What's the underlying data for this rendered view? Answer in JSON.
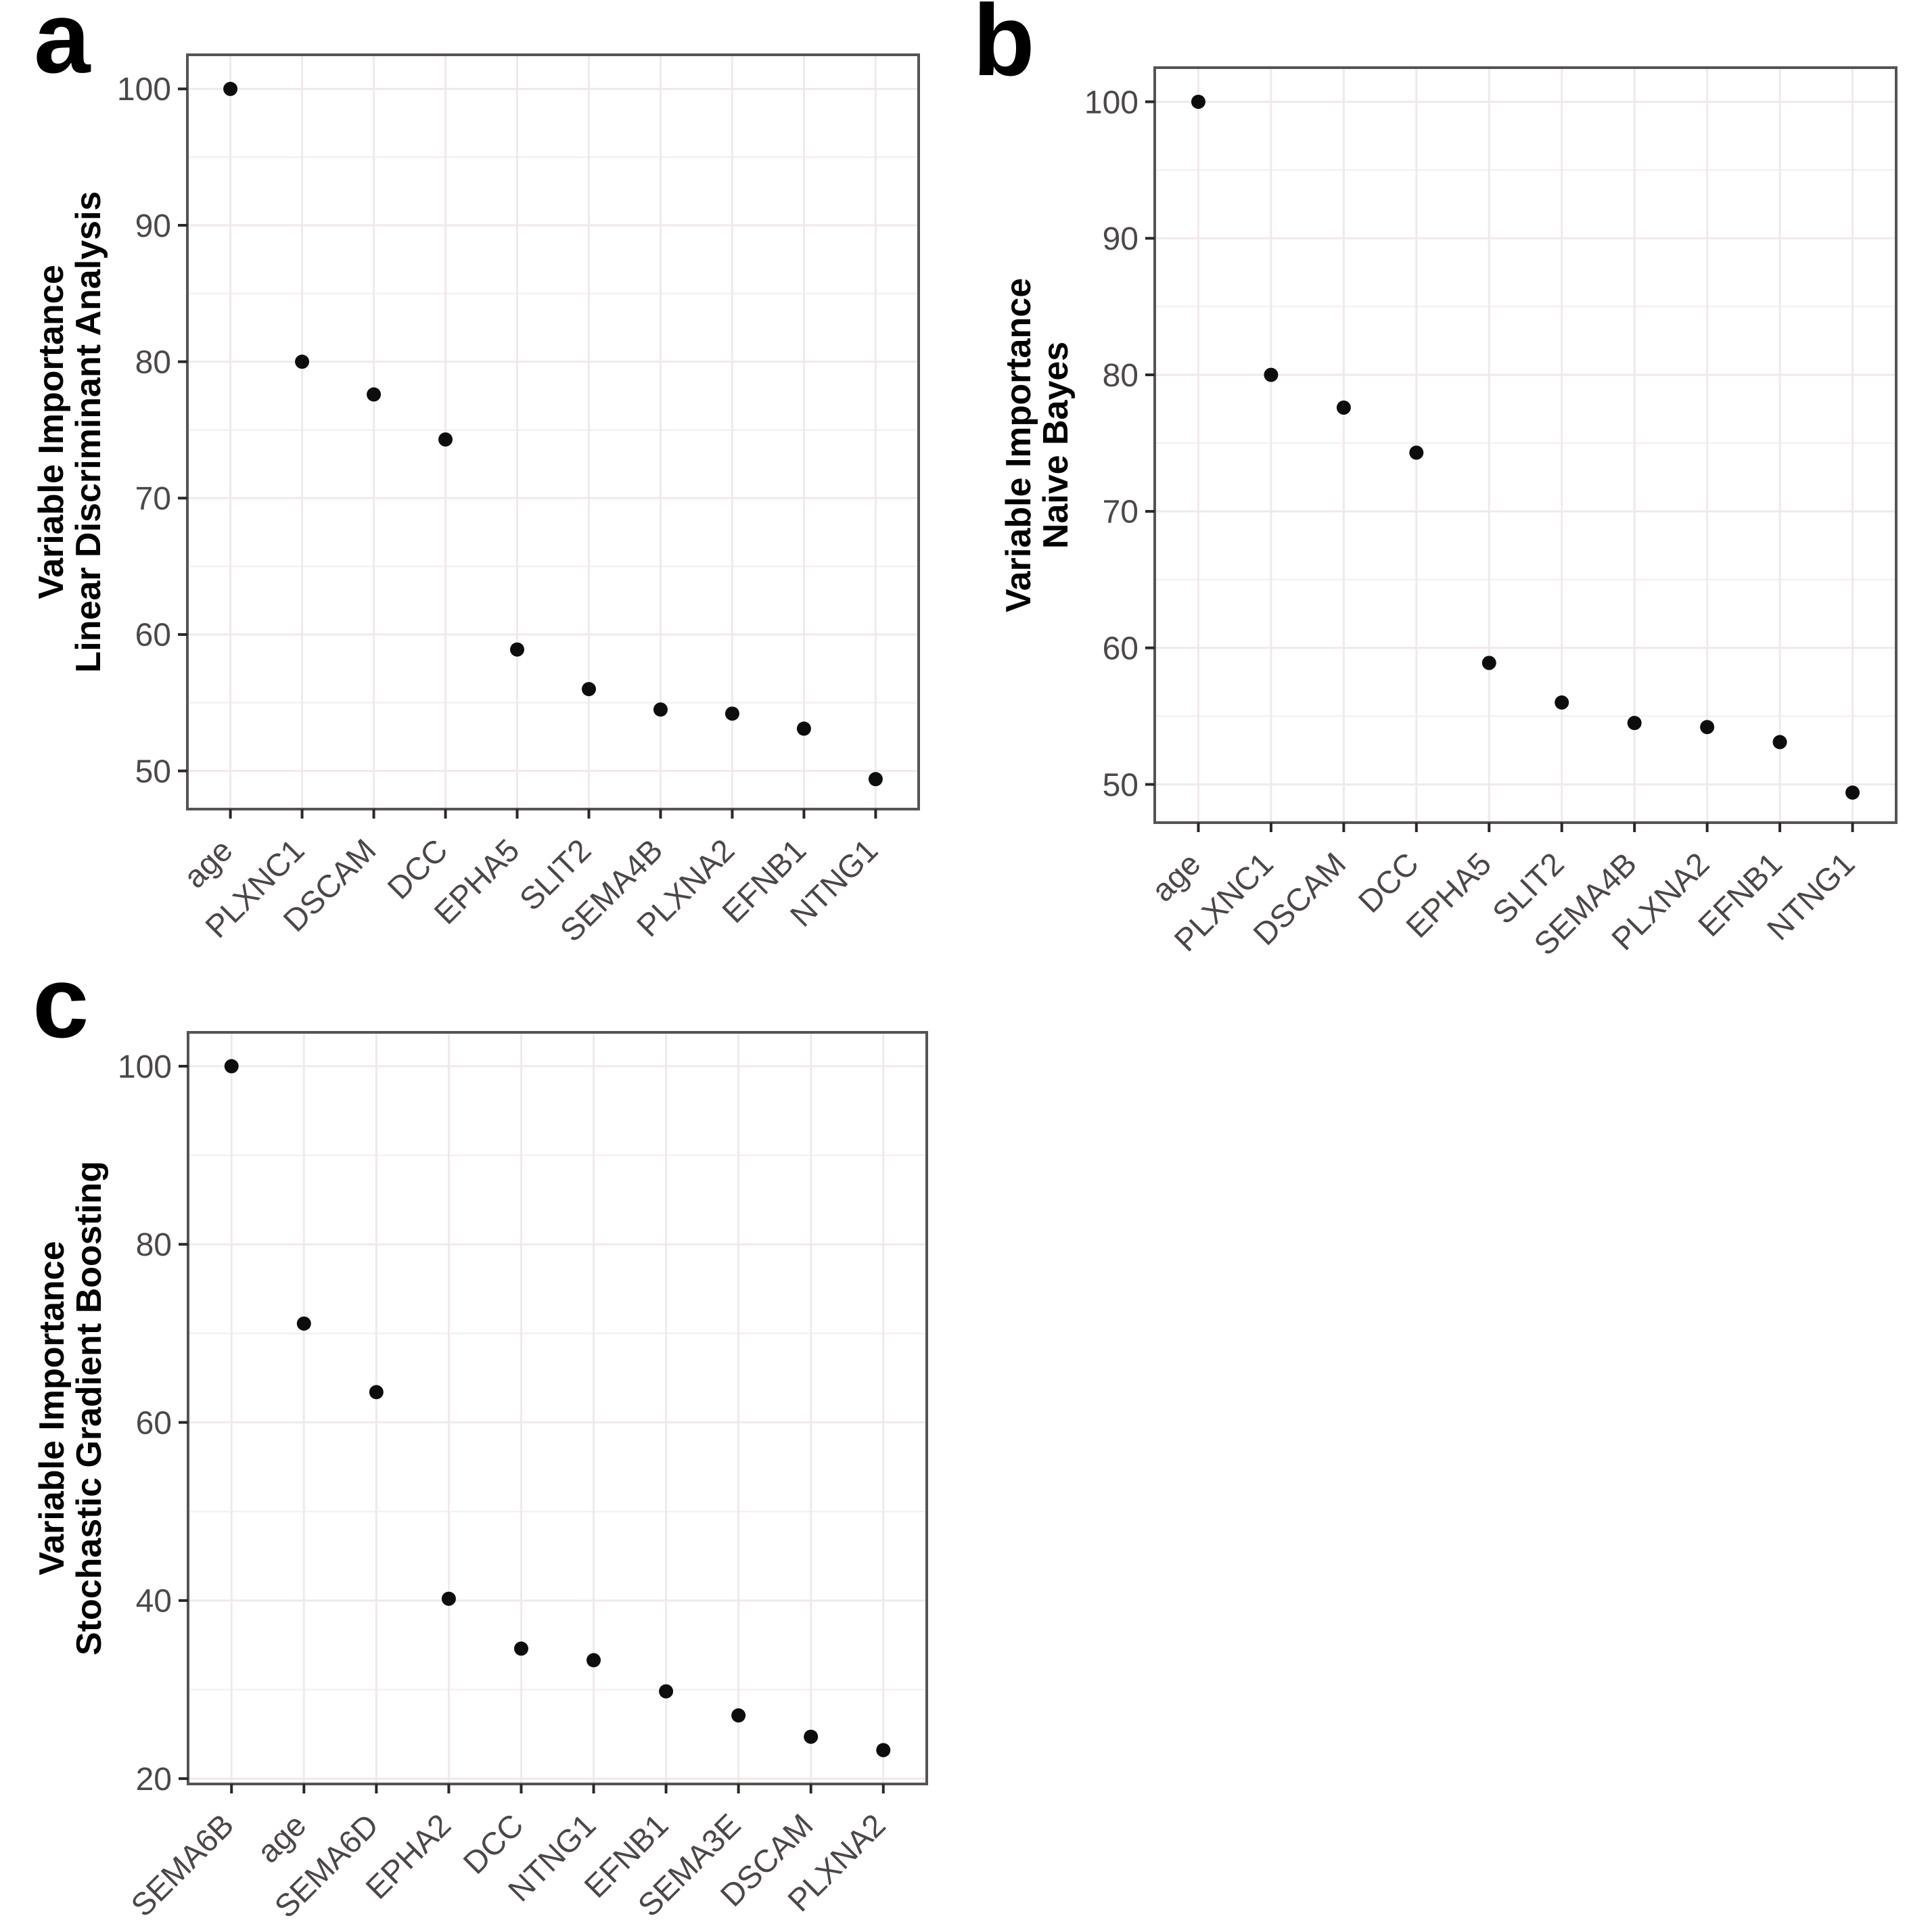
{
  "colors": {
    "background": "#ffffff",
    "grid_major": "#f1e9e9",
    "grid_minor": "#f6f0f0",
    "panel_border": "#585353",
    "tick_mark": "#2b2727",
    "tick_label": "#4d4848",
    "x_tick_label": "#4d4646",
    "axis_title": "#000000",
    "point": "#0d0d0d"
  },
  "chart_data": [
    {
      "type": "scatter",
      "panel_letter": "a",
      "title": "",
      "xlabel": "",
      "ylabel_line1": "Variable Importance",
      "ylabel_line2": "Linear Discriminant Analysis",
      "categories": [
        "age",
        "PLXNC1",
        "DSCAM",
        "DCC",
        "EPHA5",
        "SLIT2",
        "SEMA4B",
        "PLXNA2",
        "EFNB1",
        "NTNG1"
      ],
      "values": [
        100,
        80,
        77.6,
        74.3,
        58.9,
        56.0,
        54.5,
        54.2,
        53.1,
        49.4
      ],
      "ylim": [
        47.2,
        102.5
      ],
      "yticks_major": [
        50,
        60,
        70,
        80,
        90,
        100
      ],
      "yticks_minor": [
        55,
        65,
        75,
        85,
        95
      ],
      "x_tick_angle": 45,
      "grid": "on",
      "legend": "none"
    },
    {
      "type": "scatter",
      "panel_letter": "b",
      "title": "",
      "xlabel": "",
      "ylabel_line1": "Variable Importance",
      "ylabel_line2": "Naive Bayes",
      "categories": [
        "age",
        "PLXNC1",
        "DSCAM",
        "DCC",
        "EPHA5",
        "SLIT2",
        "SEMA4B",
        "PLXNA2",
        "EFNB1",
        "NTNG1"
      ],
      "values": [
        100,
        80,
        77.6,
        74.3,
        58.9,
        56.0,
        54.5,
        54.2,
        53.1,
        49.4
      ],
      "ylim": [
        47.2,
        102.5
      ],
      "yticks_major": [
        50,
        60,
        70,
        80,
        90,
        100
      ],
      "yticks_minor": [
        55,
        65,
        75,
        85,
        95
      ],
      "x_tick_angle": 45,
      "grid": "on",
      "legend": "none"
    },
    {
      "type": "scatter",
      "panel_letter": "c",
      "title": "",
      "xlabel": "",
      "ylabel_line1": "Variable Importance",
      "ylabel_line2": "Stochastic Gradient Boosting",
      "categories": [
        "SEMA6B",
        "age",
        "SEMA6D",
        "EPHA2",
        "DCC",
        "NTNG1",
        "EFNB1",
        "SEMA3E",
        "DSCAM",
        "PLXNA2"
      ],
      "values": [
        100,
        71.1,
        63.4,
        40.2,
        34.6,
        33.3,
        29.8,
        27.1,
        24.7,
        23.2
      ],
      "ylim": [
        19.4,
        103.8
      ],
      "yticks_major": [
        20,
        40,
        60,
        80,
        100
      ],
      "yticks_minor": [
        30,
        50,
        70,
        90
      ],
      "x_tick_angle": 45,
      "grid": "on",
      "legend": "none"
    }
  ]
}
